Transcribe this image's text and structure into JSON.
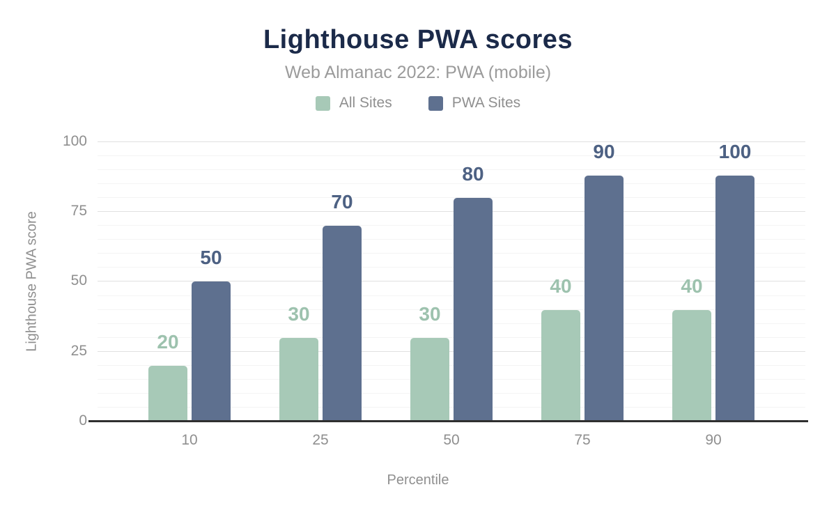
{
  "header": {
    "title": "Lighthouse PWA scores",
    "subtitle": "Web Almanac 2022: PWA (mobile)"
  },
  "chart_data": {
    "type": "bar",
    "title": "Lighthouse PWA scores",
    "subtitle": "Web Almanac 2022: PWA (mobile)",
    "categories": [
      "10",
      "25",
      "50",
      "75",
      "90"
    ],
    "series": [
      {
        "name": "All Sites",
        "color": "#a7c9b7",
        "label_color": "#9dc2ae",
        "values": [
          20,
          30,
          30,
          40,
          40
        ]
      },
      {
        "name": "PWA Sites",
        "color": "#5e708f",
        "label_color": "#4d6183",
        "values": [
          50,
          70,
          80,
          90,
          100
        ]
      }
    ],
    "xlabel": "Percentile",
    "ylabel": "Lighthouse PWA score",
    "yticks": [
      0,
      25,
      50,
      75,
      100
    ],
    "ylim": [
      0,
      100
    ],
    "major_grid_step": 25,
    "minor_grid_step": 5,
    "grid": true,
    "legend_position": "top",
    "data_labels": true,
    "colors": {
      "title": "#1b2a49",
      "subtitle": "#9b9b9b",
      "axis_text": "#8f8f8f",
      "major_gridline": "#e0e0e0",
      "minor_gridline": "#f4f4f4",
      "baseline": "#2f2f2f",
      "background": "#ffffff"
    }
  }
}
